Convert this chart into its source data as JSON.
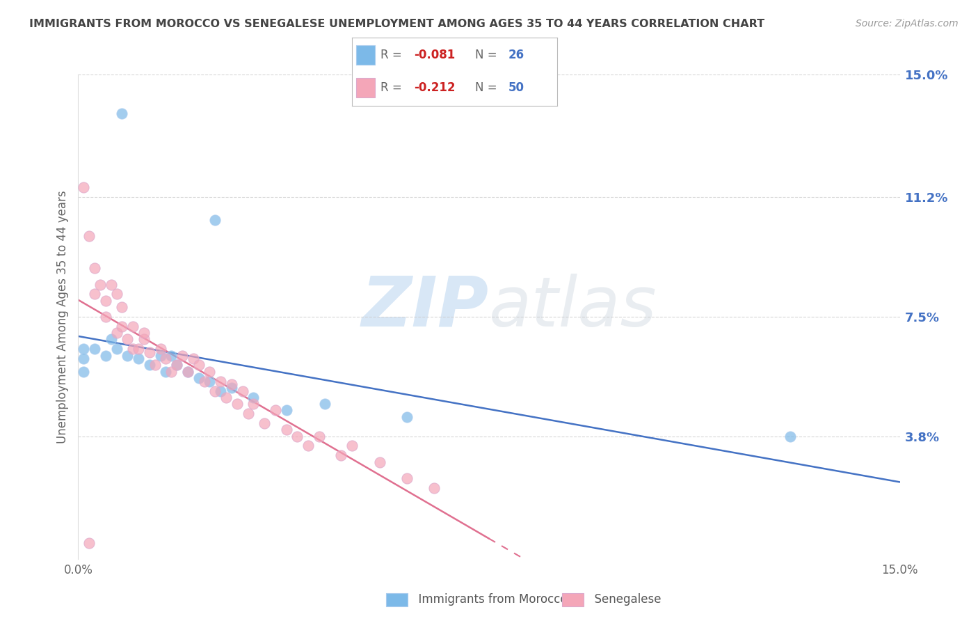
{
  "title": "IMMIGRANTS FROM MOROCCO VS SENEGALESE UNEMPLOYMENT AMONG AGES 35 TO 44 YEARS CORRELATION CHART",
  "source": "Source: ZipAtlas.com",
  "ylabel": "Unemployment Among Ages 35 to 44 years",
  "xlim": [
    0,
    0.15
  ],
  "ylim": [
    0,
    0.15
  ],
  "ytick_labels_right": [
    "15.0%",
    "11.2%",
    "7.5%",
    "3.8%"
  ],
  "ytick_values_right": [
    0.15,
    0.112,
    0.075,
    0.038
  ],
  "legend_R_blue": "-0.081",
  "legend_N_blue": "26",
  "legend_R_pink": "-0.212",
  "legend_N_pink": "50",
  "blue_color": "#7cb9e8",
  "pink_color": "#f4a6b8",
  "watermark_text": "ZIP",
  "watermark_text2": "atlas",
  "background_color": "#ffffff",
  "grid_color": "#cccccc",
  "title_color": "#444444",
  "right_label_color": "#4472c4",
  "blue_scatter_x": [
    0.008,
    0.025,
    0.001,
    0.001,
    0.001,
    0.003,
    0.005,
    0.006,
    0.007,
    0.009,
    0.011,
    0.013,
    0.015,
    0.016,
    0.017,
    0.018,
    0.02,
    0.022,
    0.024,
    0.026,
    0.028,
    0.032,
    0.038,
    0.045,
    0.06,
    0.13
  ],
  "blue_scatter_y": [
    0.138,
    0.105,
    0.065,
    0.062,
    0.058,
    0.065,
    0.063,
    0.068,
    0.065,
    0.063,
    0.062,
    0.06,
    0.063,
    0.058,
    0.063,
    0.06,
    0.058,
    0.056,
    0.055,
    0.052,
    0.053,
    0.05,
    0.046,
    0.048,
    0.044,
    0.038
  ],
  "pink_scatter_x": [
    0.001,
    0.002,
    0.003,
    0.003,
    0.004,
    0.005,
    0.005,
    0.006,
    0.007,
    0.007,
    0.008,
    0.008,
    0.009,
    0.01,
    0.01,
    0.011,
    0.012,
    0.012,
    0.013,
    0.014,
    0.015,
    0.016,
    0.017,
    0.018,
    0.019,
    0.02,
    0.021,
    0.022,
    0.023,
    0.024,
    0.025,
    0.026,
    0.027,
    0.028,
    0.029,
    0.03,
    0.031,
    0.032,
    0.034,
    0.036,
    0.038,
    0.04,
    0.042,
    0.044,
    0.048,
    0.05,
    0.055,
    0.06,
    0.065,
    0.002
  ],
  "pink_scatter_y": [
    0.115,
    0.1,
    0.09,
    0.082,
    0.085,
    0.08,
    0.075,
    0.085,
    0.082,
    0.07,
    0.078,
    0.072,
    0.068,
    0.065,
    0.072,
    0.065,
    0.068,
    0.07,
    0.064,
    0.06,
    0.065,
    0.062,
    0.058,
    0.06,
    0.063,
    0.058,
    0.062,
    0.06,
    0.055,
    0.058,
    0.052,
    0.055,
    0.05,
    0.054,
    0.048,
    0.052,
    0.045,
    0.048,
    0.042,
    0.046,
    0.04,
    0.038,
    0.035,
    0.038,
    0.032,
    0.035,
    0.03,
    0.025,
    0.022,
    0.005
  ]
}
